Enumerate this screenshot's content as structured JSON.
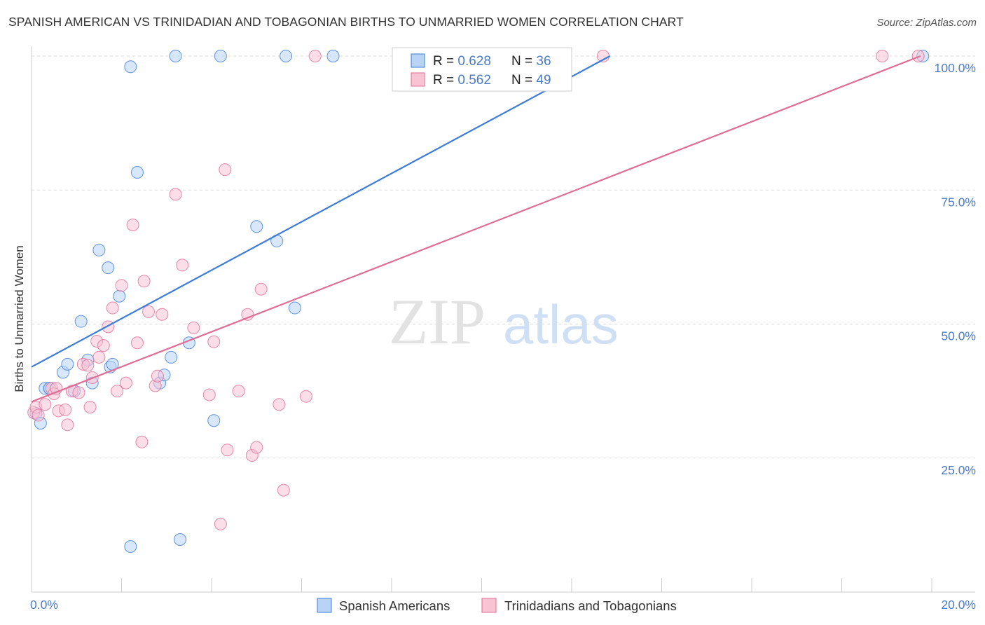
{
  "title": "SPANISH AMERICAN VS TRINIDADIAN AND TOBAGONIAN BIRTHS TO UNMARRIED WOMEN CORRELATION CHART",
  "source": "Source: ZipAtlas.com",
  "watermark": {
    "zip": "ZIP",
    "atlas": "atlas"
  },
  "colors": {
    "blue": "#3b7dd8",
    "blue_fill": "#b9d3f5",
    "pink": "#e06d96",
    "pink_fill": "#f8c3d3",
    "tick_label": "#4a7bc8",
    "grid": "#dddddd"
  },
  "legend_stats": [
    {
      "r_label": "R = ",
      "r": "0.628",
      "n_label": "N = ",
      "n": "36",
      "series": "blue"
    },
    {
      "r_label": "R = ",
      "r": "0.562",
      "n_label": "N = ",
      "n": "49",
      "series": "pink"
    }
  ],
  "chart_data": {
    "type": "scatter",
    "title": "SPANISH AMERICAN VS TRINIDADIAN AND TOBAGONIAN BIRTHS TO UNMARRIED WOMEN CORRELATION CHART",
    "xlabel": "",
    "ylabel": "Births to Unmarried Women",
    "xlim": [
      0,
      20
    ],
    "ylim": [
      0,
      100
    ],
    "x_tick_labels": [
      "0.0%",
      "20.0%"
    ],
    "y_tick_labels": [
      "25.0%",
      "50.0%",
      "75.0%",
      "100.0%"
    ],
    "y_ticks": [
      25,
      50,
      75,
      100
    ],
    "grid": true,
    "legend_position": "bottom",
    "series": [
      {
        "name": "Spanish Americans",
        "color": "#3b7dd8",
        "R": 0.628,
        "N": 36,
        "trend": [
          [
            0,
            42.0
          ],
          [
            12.85,
            100.0
          ]
        ],
        "points": [
          [
            0.1,
            33.3
          ],
          [
            0.2,
            31.5
          ],
          [
            0.3,
            38.0
          ],
          [
            0.4,
            38.0
          ],
          [
            0.7,
            41.0
          ],
          [
            0.8,
            42.5
          ],
          [
            0.95,
            37.5
          ],
          [
            1.1,
            50.5
          ],
          [
            1.25,
            43.3
          ],
          [
            1.35,
            39.0
          ],
          [
            1.5,
            63.8
          ],
          [
            1.7,
            60.5
          ],
          [
            1.75,
            42.0
          ],
          [
            1.8,
            42.5
          ],
          [
            1.95,
            55.2
          ],
          [
            2.2,
            98.0
          ],
          [
            2.35,
            78.3
          ],
          [
            2.85,
            39.0
          ],
          [
            2.95,
            40.5
          ],
          [
            3.1,
            43.8
          ],
          [
            3.2,
            100.0
          ],
          [
            3.3,
            9.8
          ],
          [
            3.5,
            46.5
          ],
          [
            4.05,
            32.0
          ],
          [
            4.2,
            100.0
          ],
          [
            5.0,
            68.2
          ],
          [
            5.45,
            65.5
          ],
          [
            5.65,
            100.0
          ],
          [
            5.85,
            53.0
          ],
          [
            6.7,
            100.0
          ],
          [
            8.6,
            100.0
          ],
          [
            9.1,
            100.0
          ],
          [
            11.1,
            100.0
          ],
          [
            2.2,
            8.5
          ],
          [
            19.8,
            100.0
          ],
          [
            0.4,
            38.0
          ]
        ]
      },
      {
        "name": "Trinidadians and Tobagonians",
        "color": "#e06d96",
        "R": 0.562,
        "N": 49,
        "trend": [
          [
            0,
            35.5
          ],
          [
            19.75,
            100.0
          ]
        ],
        "points": [
          [
            0.05,
            33.5
          ],
          [
            0.1,
            34.5
          ],
          [
            0.15,
            33.0
          ],
          [
            0.3,
            35.0
          ],
          [
            0.45,
            38.0
          ],
          [
            0.5,
            37.0
          ],
          [
            0.55,
            38.0
          ],
          [
            0.6,
            33.8
          ],
          [
            0.75,
            34.0
          ],
          [
            0.8,
            31.2
          ],
          [
            0.9,
            37.5
          ],
          [
            1.05,
            37.2
          ],
          [
            1.15,
            42.5
          ],
          [
            1.25,
            42.3
          ],
          [
            1.3,
            34.5
          ],
          [
            1.35,
            40.0
          ],
          [
            1.45,
            46.8
          ],
          [
            1.5,
            43.8
          ],
          [
            1.6,
            46.0
          ],
          [
            1.7,
            49.5
          ],
          [
            1.8,
            53.0
          ],
          [
            1.9,
            37.5
          ],
          [
            2.0,
            57.2
          ],
          [
            2.1,
            39.0
          ],
          [
            2.25,
            68.5
          ],
          [
            2.35,
            46.5
          ],
          [
            2.45,
            28.0
          ],
          [
            2.5,
            58.0
          ],
          [
            2.6,
            52.3
          ],
          [
            2.75,
            38.5
          ],
          [
            2.8,
            40.3
          ],
          [
            2.9,
            51.8
          ],
          [
            3.2,
            74.2
          ],
          [
            3.35,
            61.0
          ],
          [
            3.6,
            49.3
          ],
          [
            3.95,
            36.8
          ],
          [
            4.05,
            46.7
          ],
          [
            4.2,
            12.7
          ],
          [
            4.3,
            78.8
          ],
          [
            4.35,
            26.5
          ],
          [
            4.6,
            37.5
          ],
          [
            4.8,
            51.8
          ],
          [
            4.9,
            25.5
          ],
          [
            5.0,
            27.0
          ],
          [
            5.1,
            56.5
          ],
          [
            5.5,
            35.0
          ],
          [
            5.6,
            19.0
          ],
          [
            6.1,
            36.5
          ],
          [
            18.9,
            100.0
          ]
        ]
      }
    ]
  },
  "extra_points": {
    "pink": [
      [
        6.3,
        100.0
      ],
      [
        12.7,
        100.0
      ],
      [
        19.7,
        100.0
      ]
    ]
  }
}
